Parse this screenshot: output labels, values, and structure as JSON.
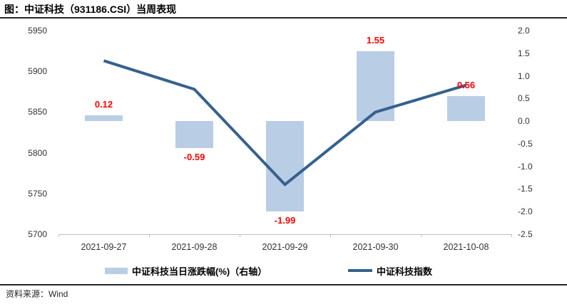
{
  "header": {
    "title": "图：中证科技（931186.CSI）当周表现"
  },
  "chart_data": {
    "type": "combo",
    "title": "图：中证科技（931186.CSI）当周表现",
    "categories": [
      "2021-09-27",
      "2021-09-28",
      "2021-09-29",
      "2021-09-30",
      "2021-10-08"
    ],
    "series": [
      {
        "name": "中证科技当日涨跌幅(%)（右轴）",
        "type": "bar",
        "axis": "right",
        "values": [
          0.12,
          -0.59,
          -1.99,
          1.55,
          0.56
        ],
        "value_labels": [
          "0.12",
          "-0.59",
          "-1.99",
          "1.55",
          "0.56"
        ],
        "color": "#B9CDE5",
        "value_label_color": "#FF0000"
      },
      {
        "name": "中证科技指数",
        "type": "line",
        "axis": "left",
        "values": [
          5913,
          5878,
          5761,
          5850,
          5883
        ],
        "color": "#35618F"
      }
    ],
    "left_axis": {
      "min": 5700,
      "max": 5950,
      "ticks": [
        "5950",
        "5900",
        "5850",
        "5800",
        "5750",
        "5700"
      ]
    },
    "right_axis": {
      "min": -2.5,
      "max": 2.0,
      "ticks": [
        "2.0",
        "1.5",
        "1.0",
        "0.5",
        "0.0",
        "-0.5",
        "-1.0",
        "-1.5",
        "-2.0",
        "-2.5"
      ]
    },
    "legend_position": "bottom",
    "grid": false,
    "axis_line_color": "#BFBFBF",
    "tick_label_color": "#333333"
  },
  "footer": {
    "source": "资料来源：Wind"
  }
}
